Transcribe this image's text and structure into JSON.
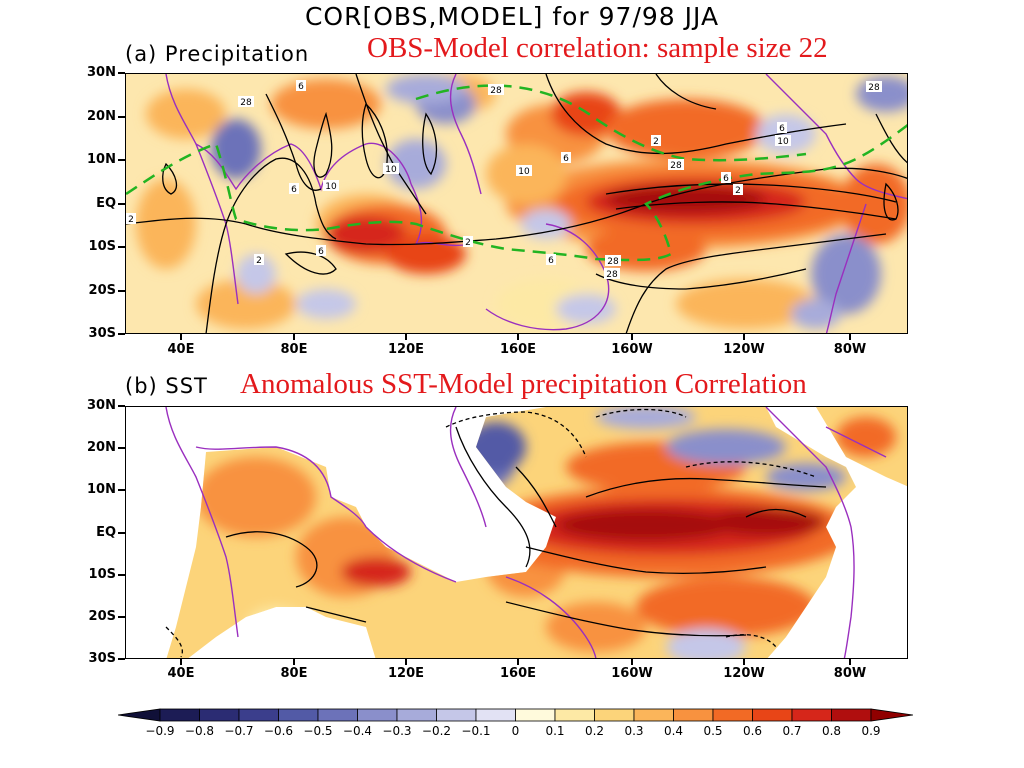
{
  "title": "COR[OBS,MODEL] for 97/98 JJA",
  "panels": [
    {
      "label": "(a) Precipitation",
      "annotation": "OBS-Model correlation: sample size 22",
      "contour_labels": [
        "6",
        "28",
        "28",
        "28",
        "2",
        "10",
        "10",
        "6",
        "10",
        "6",
        "6",
        "10",
        "2",
        "28",
        "6",
        "2",
        "6",
        "2",
        "28",
        "6",
        "28",
        "2"
      ]
    },
    {
      "label": "(b) SST",
      "annotation": "Anomalous SST-Model precipitation Correlation"
    }
  ],
  "axes": {
    "lat_labels": [
      "30N",
      "20N",
      "10N",
      "EQ",
      "10S",
      "20S",
      "30S"
    ],
    "lon_labels": [
      "40E",
      "80E",
      "120E",
      "160E",
      "160W",
      "120W",
      "80W"
    ]
  },
  "colorbar": {
    "labels": [
      "-0.9",
      "-0.8",
      "-0.7",
      "-0.6",
      "-0.5",
      "-0.4",
      "-0.3",
      "-0.2",
      "-0.1",
      "0",
      "0.1",
      "0.2",
      "0.3",
      "0.4",
      "0.5",
      "0.6",
      "0.7",
      "0.8",
      "0.9"
    ],
    "colors": [
      "#1c1c55",
      "#2b2c73",
      "#3b3e8c",
      "#525aa6",
      "#6c72b9",
      "#8a8fcb",
      "#a7abda",
      "#c5c7e8",
      "#e2e2f4",
      "#fffadc",
      "#fde9a5",
      "#fcd47a",
      "#fbb55a",
      "#f8923f",
      "#f26a25",
      "#e84517",
      "#d6261a",
      "#b00e0e"
    ],
    "end_low": "#101038",
    "end_high": "#900000"
  }
}
